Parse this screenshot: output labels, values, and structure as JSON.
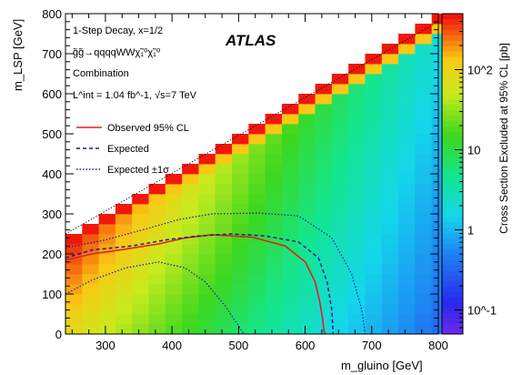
{
  "chart_data": {
    "type": "heatmap",
    "experiment": "ATLAS",
    "annotations": [
      "1-Step Decay, x=1/2",
      "g̃g̃→qqqqWWχ̃₁⁰χ̃₁⁰",
      "Combination",
      "L^int = 1.04 fb^-1, √s=7 TeV"
    ],
    "xlabel": "m_gluino [GeV]",
    "ylabel": "m_LSP [GeV]",
    "zlabel": "Cross Section Excluded at 95% CL [pb]",
    "xlim": [
      240,
      800
    ],
    "ylim": [
      0,
      800
    ],
    "zlog": true,
    "zlim": [
      0.05,
      500
    ],
    "x_ticks": [
      300,
      400,
      500,
      600,
      700,
      800
    ],
    "y_ticks": [
      0,
      100,
      200,
      300,
      400,
      500,
      600,
      700,
      800
    ],
    "z_tick_labels": [
      "10^-1",
      "1",
      "10",
      "10^2"
    ],
    "z_tick_values": [
      0.1,
      1,
      10,
      100
    ],
    "grid_cell_size_gev": 25,
    "diagonal": "m_LSP = m_gluino",
    "legend": {
      "placement": "center-left",
      "entries": [
        {
          "label": "Observed 95% CL",
          "color": "#dd2222",
          "style": "solid"
        },
        {
          "label": "Expected",
          "color": "#1a1aa0",
          "style": "dashed"
        },
        {
          "label": "Expected ±1σ",
          "color": "#1a1aa0",
          "style": "dotted"
        }
      ]
    },
    "series": [
      {
        "name": "Observed 95% CL",
        "x": [
          240,
          280,
          330,
          380,
          420,
          460,
          520,
          570,
          600,
          615,
          622,
          626,
          628,
          630
        ],
        "y": [
          185,
          200,
          212,
          225,
          240,
          248,
          242,
          220,
          180,
          130,
          80,
          40,
          10,
          0
        ]
      },
      {
        "name": "Expected",
        "x": [
          240,
          280,
          340,
          390,
          440,
          490,
          540,
          590,
          620,
          633,
          640,
          642
        ],
        "y": [
          190,
          210,
          220,
          235,
          245,
          250,
          245,
          230,
          190,
          130,
          60,
          0
        ]
      },
      {
        "name": "Expected +1σ",
        "x": [
          240,
          300,
          360,
          410,
          460,
          530,
          590,
          640,
          670,
          685,
          690
        ],
        "y": [
          215,
          235,
          262,
          286,
          300,
          302,
          295,
          240,
          150,
          60,
          0
        ]
      },
      {
        "name": "Expected -1σ",
        "x": [
          240,
          280,
          330,
          380,
          420,
          450,
          480,
          500,
          508
        ],
        "y": [
          100,
          135,
          165,
          180,
          165,
          130,
          70,
          20,
          0
        ]
      }
    ]
  }
}
